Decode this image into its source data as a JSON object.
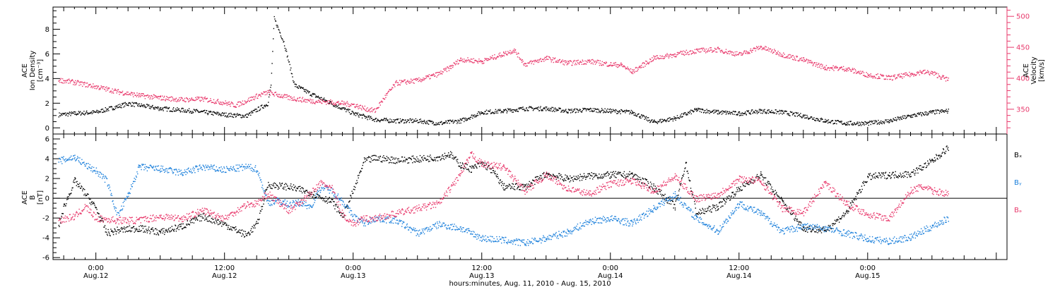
{
  "colors": {
    "density": "#000000",
    "velocity": "#e8386b",
    "bx": "#000000",
    "by": "#1a7fdb",
    "bz": "#e8386b",
    "axis": "#000000"
  },
  "chart_data": [
    {
      "type": "scatter",
      "panel": "top",
      "ylabel_left_lines": [
        "ACE",
        "Ion Density",
        "[cm⁻³]"
      ],
      "ylabel_right_lines": [
        "ACE",
        "Velocity",
        "[km/s]"
      ],
      "ylim_left": [
        -0.5,
        9.8
      ],
      "ylim_right": [
        310,
        515
      ],
      "left_ticks": [
        "0",
        "2",
        "4",
        "6",
        "8"
      ],
      "right_ticks": [
        "350",
        "400",
        "450",
        "500"
      ],
      "series": [
        {
          "axis": "left",
          "color_key": "density",
          "x": [
            -3.5,
            -2,
            0,
            3,
            6,
            9,
            12,
            14,
            16,
            16.3,
            16.6,
            17.5,
            18.5,
            20,
            21.5,
            23,
            24,
            26,
            28,
            30,
            32,
            34,
            36,
            38,
            40,
            42,
            44,
            46,
            48,
            50,
            52,
            54,
            56,
            58,
            60,
            62,
            64,
            66,
            68,
            70,
            72,
            74,
            76,
            78,
            79.5
          ],
          "y": [
            1.1,
            1.2,
            1.3,
            2.0,
            1.6,
            1.4,
            1.1,
            1.0,
            2.0,
            3.5,
            8.9,
            7.0,
            3.5,
            2.8,
            2.2,
            1.6,
            1.2,
            0.7,
            0.6,
            0.6,
            0.4,
            0.6,
            1.3,
            1.4,
            1.6,
            1.6,
            1.4,
            1.5,
            1.4,
            1.3,
            0.5,
            0.8,
            1.5,
            1.3,
            1.2,
            1.4,
            1.3,
            1.0,
            0.6,
            0.4,
            0.4,
            0.6,
            1.0,
            1.3,
            1.4
          ]
        },
        {
          "axis": "right",
          "color_key": "velocity",
          "x": [
            -3.5,
            -2,
            0,
            2,
            4,
            6,
            8,
            10,
            12,
            13,
            14,
            15,
            16,
            18,
            20,
            22,
            24,
            25,
            26,
            27,
            28,
            30,
            32,
            33,
            34,
            36,
            38,
            39,
            40,
            42,
            44,
            46,
            48,
            49,
            50,
            52,
            54,
            56,
            58,
            60,
            62,
            64,
            66,
            68,
            70,
            72,
            73,
            74,
            76,
            77,
            78,
            79.5
          ],
          "y": [
            398,
            394,
            387,
            379,
            373,
            369,
            366,
            367,
            361,
            357,
            364,
            372,
            378,
            369,
            364,
            362,
            358,
            352,
            348,
            372,
            393,
            397,
            408,
            418,
            431,
            428,
            440,
            446,
            423,
            433,
            425,
            428,
            423,
            422,
            411,
            433,
            439,
            445,
            447,
            439,
            451,
            439,
            430,
            418,
            416,
            406,
            404,
            401,
            407,
            411,
            409,
            398
          ]
        }
      ]
    },
    {
      "type": "scatter",
      "panel": "bottom",
      "ylabel_lines": [
        "ACE",
        "B",
        "[nT]"
      ],
      "ylim": [
        -6.2,
        6.5
      ],
      "ticks": [
        "-6",
        "-4",
        "-2",
        "0",
        "2",
        "4",
        "6"
      ],
      "legend": [
        "Bₓ",
        "Bᵧ",
        "Bₔ"
      ],
      "series": [
        {
          "name": "Bx",
          "color_key": "bx",
          "x": [
            -3.5,
            -3,
            -2,
            -1,
            0,
            1,
            2,
            4,
            6,
            8,
            10,
            12,
            14,
            15,
            16,
            18,
            20,
            22,
            23,
            24,
            25,
            26,
            28,
            30,
            32,
            33,
            34,
            35,
            36,
            37,
            38,
            40,
            42,
            44,
            46,
            48,
            50,
            52,
            54,
            55,
            56,
            58,
            60,
            62,
            64,
            66,
            68,
            70,
            72,
            74,
            76,
            78,
            79.5
          ],
          "y": [
            -2.8,
            -0.8,
            1.8,
            0.5,
            -1.0,
            -3.5,
            -3.2,
            -3.0,
            -3.4,
            -2.8,
            -1.8,
            -2.6,
            -3.7,
            -2.6,
            1.4,
            1.2,
            0.6,
            -0.3,
            -1.8,
            0.8,
            3.8,
            4.1,
            3.9,
            4.0,
            4.2,
            4.5,
            3.4,
            3.0,
            3.6,
            2.8,
            1.2,
            1.2,
            2.5,
            2.0,
            2.3,
            2.4,
            2.4,
            1.2,
            -0.8,
            3.6,
            -1.5,
            -0.8,
            1.0,
            2.4,
            -0.3,
            -3.0,
            -3.2,
            -1.4,
            2.2,
            2.4,
            2.5,
            3.8,
            5.2
          ]
        },
        {
          "name": "By",
          "color_key": "by",
          "x": [
            -3.5,
            -2,
            -1,
            0,
            1,
            2,
            3,
            4,
            6,
            8,
            10,
            12,
            14,
            15,
            16,
            17,
            18,
            19,
            20,
            21,
            22,
            23,
            24,
            25,
            26,
            28,
            30,
            32,
            34,
            36,
            38,
            40,
            42,
            44,
            46,
            48,
            50,
            52,
            54,
            56,
            58,
            60,
            62,
            64,
            66,
            68,
            70,
            72,
            74,
            76,
            78,
            79.5
          ],
          "y": [
            3.8,
            4.2,
            3.4,
            2.8,
            1.8,
            -1.8,
            0.4,
            3.2,
            3.0,
            2.6,
            3.2,
            2.9,
            3.2,
            3.0,
            -0.4,
            -0.2,
            -0.6,
            -0.4,
            -0.8,
            1.2,
            0.8,
            -0.3,
            -1.8,
            -2.5,
            -2.0,
            -2.2,
            -3.5,
            -2.6,
            -3.0,
            -4.0,
            -4.2,
            -4.5,
            -4.0,
            -3.4,
            -2.3,
            -2.0,
            -2.5,
            -1.0,
            0.4,
            -2.0,
            -3.3,
            -0.5,
            -1.5,
            -3.3,
            -2.8,
            -3.0,
            -3.5,
            -4.1,
            -4.3,
            -3.9,
            -2.8,
            -2.0
          ]
        },
        {
          "name": "Bz",
          "color_key": "bz",
          "x": [
            -3.5,
            -2,
            -1,
            0,
            2,
            4,
            6,
            8,
            10,
            12,
            14,
            15,
            16,
            18,
            20,
            21,
            22,
            23,
            24,
            25,
            26,
            28,
            30,
            32,
            34,
            35,
            36,
            38,
            40,
            42,
            44,
            46,
            48,
            50,
            52,
            54,
            56,
            58,
            60,
            62,
            64,
            66,
            68,
            70,
            72,
            74,
            76,
            77,
            78,
            79.5
          ],
          "y": [
            -2.2,
            -1.8,
            -0.8,
            -2.0,
            -2.2,
            -2.2,
            -1.8,
            -2.0,
            -1.2,
            -2.0,
            -0.6,
            -0.5,
            0.5,
            -1.2,
            0.5,
            1.6,
            1.0,
            -1.6,
            -2.6,
            -2.0,
            -2.0,
            -1.5,
            -1.0,
            -0.5,
            2.5,
            4.5,
            3.5,
            3.2,
            0.8,
            2.4,
            1.0,
            0.5,
            1.5,
            1.8,
            0.8,
            2.2,
            0.0,
            0.4,
            2.0,
            1.8,
            -1.0,
            -1.4,
            1.6,
            -0.5,
            -1.6,
            -2.0,
            0.8,
            1.2,
            0.8,
            0.5
          ]
        }
      ]
    }
  ],
  "x_axis": {
    "range_hours": [
      -4,
      85
    ],
    "ticks": [
      {
        "hours": 0,
        "time": "0:00",
        "date": "Aug.12"
      },
      {
        "hours": 12,
        "time": "12:00",
        "date": "Aug.12"
      },
      {
        "hours": 24,
        "time": "0:00",
        "date": "Aug.13"
      },
      {
        "hours": 36,
        "time": "12:00",
        "date": "Aug.13"
      },
      {
        "hours": 48,
        "time": "0:00",
        "date": "Aug.14"
      },
      {
        "hours": 60,
        "time": "12:00",
        "date": "Aug.14"
      },
      {
        "hours": 72,
        "time": "0:00",
        "date": "Aug.15"
      }
    ],
    "label": "hours:minutes, Aug. 11, 2010 - Aug. 15, 2010"
  }
}
